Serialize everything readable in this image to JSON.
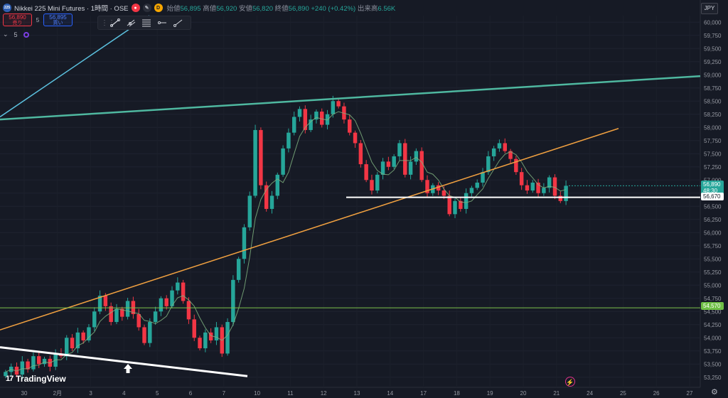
{
  "header": {
    "symbol_badge": "225",
    "title": "Nikkei 225 Mini Futures · 1時間 · OSE",
    "open_label": "始値",
    "open": "56,895",
    "high_label": "高値",
    "high": "56,920",
    "low_label": "安値",
    "low": "56,820",
    "close_label": "終値",
    "close": "56,890",
    "change": "+240 (+0.42%)",
    "volume_label": "出来高",
    "volume": "6.56K",
    "d_label": "D"
  },
  "trade": {
    "sell_price": "56,890",
    "sell_label": "売り",
    "spread": "5",
    "buy_price": "56,895",
    "buy_label": "買い"
  },
  "indicator_row": {
    "chevron": "⌄",
    "value": "5"
  },
  "drawing_toolbar": {
    "icons": [
      "grip-icon",
      "trend-line-icon",
      "pitchfork-icon",
      "fib-retracement-icon",
      "horizontal-ray-icon",
      "ray-icon"
    ]
  },
  "currency": "JPY",
  "price_labels": {
    "current_price": "56,890",
    "countdown": "48:30",
    "white_line": "56,670",
    "green_line": "54,570"
  },
  "branding": {
    "text": "TradingView"
  },
  "colors": {
    "background": "#161a25",
    "up": "#26a69a",
    "down": "#f23645",
    "ma": "#7fb27f",
    "teal_line": "#4fb8a0",
    "cyan_line": "#5bc0de",
    "orange_line": "#f0a040",
    "green_hline": "#7cc24b",
    "white_line": "#ffffff"
  },
  "chart_data": {
    "type": "candlestick",
    "timeframe": "1時間",
    "y_axis": {
      "min": 53125,
      "max": 60125,
      "tick_labels": [
        "53,250",
        "53,500",
        "53,750",
        "54,000",
        "54,250",
        "54,500",
        "54,750",
        "55,000",
        "55,250",
        "55,500",
        "55,750",
        "56,000",
        "56,250",
        "56,500",
        "56,750",
        "57,000",
        "57,250",
        "57,500",
        "57,750",
        "58,000",
        "58,250",
        "58,500",
        "58,750",
        "59,000",
        "59,250",
        "59,500",
        "59,750",
        "60,000"
      ]
    },
    "x_axis": {
      "tick_labels": [
        "30",
        "2月",
        "3",
        "4",
        "5",
        "6",
        "7",
        "10",
        "11",
        "12",
        "13",
        "14",
        "17",
        "18",
        "19",
        "20",
        "21",
        "24",
        "25",
        "26",
        "27"
      ]
    },
    "lines": [
      {
        "name": "white support line",
        "value": 56670
      },
      {
        "name": "green horizontal line",
        "value": 54570
      }
    ],
    "series": [
      {
        "name": "close",
        "values": [
          53350,
          53450,
          53300,
          53550,
          53400,
          53650,
          53500,
          53600,
          53450,
          53700,
          53650,
          54000,
          53800,
          54100,
          53950,
          54200,
          54500,
          54800,
          54600,
          54300,
          54550,
          54400,
          54700,
          54450,
          54200,
          53900,
          54300,
          54500,
          54750,
          54600,
          54900,
          55050,
          54700,
          54350,
          54000,
          53800,
          54100,
          53950,
          54200,
          53700,
          54300,
          55100,
          55500,
          56100,
          56700,
          57950,
          56900,
          56450,
          56700,
          57100,
          57600,
          57900,
          58200,
          58350,
          57950,
          58150,
          58300,
          58050,
          58250,
          58500,
          58400,
          58150,
          57900,
          57700,
          57300,
          57000,
          56800,
          57100,
          57350,
          57250,
          57450,
          57700,
          57100,
          57350,
          57550,
          57000,
          56750,
          56900,
          56800,
          56700,
          56350,
          56600,
          56450,
          56750,
          56850,
          56950,
          57150,
          57450,
          57600,
          57700,
          57550,
          57400,
          57150,
          56900,
          56800,
          56950,
          56750,
          56850,
          57050,
          56700,
          56600,
          56890
        ]
      }
    ]
  }
}
